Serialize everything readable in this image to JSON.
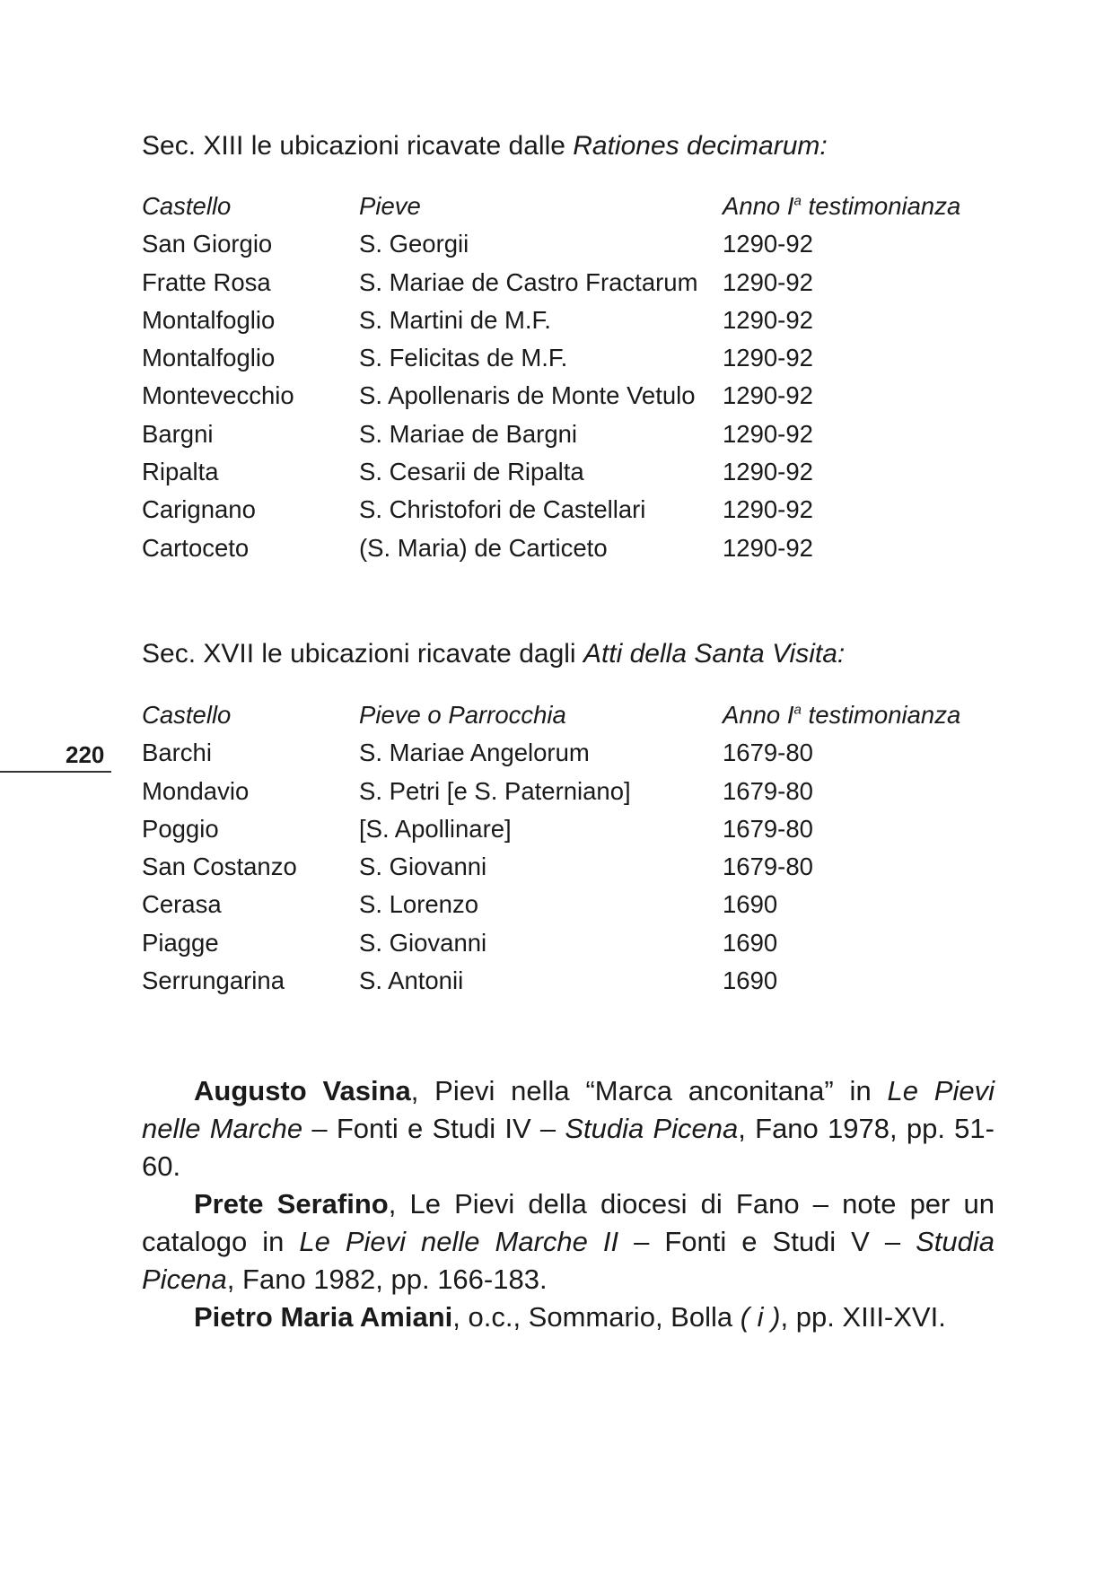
{
  "page_number": "220",
  "section1": {
    "title_plain": "Sec. XIII le ubicazioni ricavate dalle ",
    "title_italic": "Rationes decimarum:",
    "headers": {
      "castello": "Castello",
      "pieve": "Pieve",
      "anno": "Anno I",
      "anno_sup": "a",
      "anno_rest": " testimonianza"
    },
    "rows": [
      {
        "castello": "San Giorgio",
        "pieve": "S. Georgii",
        "anno": "1290-92"
      },
      {
        "castello": "Fratte Rosa",
        "pieve": "S. Mariae de Castro Fractarum",
        "anno": "1290-92"
      },
      {
        "castello": "Montalfoglio",
        "pieve": "S. Martini de M.F.",
        "anno": "1290-92"
      },
      {
        "castello": "Montalfoglio",
        "pieve": "S. Felicitas de M.F.",
        "anno": "1290-92"
      },
      {
        "castello": "Montevecchio",
        "pieve": "S. Apollenaris de Monte Vetulo",
        "anno": "1290-92"
      },
      {
        "castello": "Bargni",
        "pieve": "S. Mariae de Bargni",
        "anno": "1290-92"
      },
      {
        "castello": "Ripalta",
        "pieve": "S. Cesarii de Ripalta",
        "anno": "1290-92"
      },
      {
        "castello": "Carignano",
        "pieve": "S. Christofori de Castellari",
        "anno": "1290-92"
      },
      {
        "castello": "Cartoceto",
        "pieve": "(S. Maria) de Carticeto",
        "anno": "1290-92"
      }
    ]
  },
  "section2": {
    "title_plain": "Sec. XVII le ubicazioni ricavate dagli ",
    "title_italic": "Atti della Santa Visita:",
    "headers": {
      "castello": "Castello",
      "pieve": "Pieve o Parrocchia",
      "anno": "Anno I",
      "anno_sup": "a",
      "anno_rest": " testimonianza"
    },
    "rows": [
      {
        "castello": "Barchi",
        "pieve": "S. Mariae Angelorum",
        "anno": "1679-80"
      },
      {
        "castello": "Mondavio",
        "pieve": "S. Petri [e S. Paterniano]",
        "anno": "1679-80"
      },
      {
        "castello": "Poggio",
        "pieve": "[S. Apollinare]",
        "anno": "1679-80"
      },
      {
        "castello": "San Costanzo",
        "pieve": "S. Giovanni",
        "anno": "1679-80"
      },
      {
        "castello": "Cerasa",
        "pieve": "S. Lorenzo",
        "anno": "1690"
      },
      {
        "castello": "Piagge",
        "pieve": "S. Giovanni",
        "anno": "1690"
      },
      {
        "castello": "Serrungarina",
        "pieve": "S. Antonii",
        "anno": "1690"
      }
    ]
  },
  "references": [
    {
      "parts": [
        {
          "t": "Augusto Vasina",
          "s": "b"
        },
        {
          "t": ", Pievi nella “Marca anconitana” in ",
          "s": ""
        },
        {
          "t": "Le Pievi nelle Marche",
          "s": "i"
        },
        {
          "t": " – Fonti e Studi IV – ",
          "s": ""
        },
        {
          "t": "Studia Picena",
          "s": "i"
        },
        {
          "t": ", Fano 1978, pp. 51-60.",
          "s": ""
        }
      ]
    },
    {
      "parts": [
        {
          "t": "Prete Serafino",
          "s": "b"
        },
        {
          "t": ", Le Pievi della diocesi di Fano – note per un catalogo in ",
          "s": ""
        },
        {
          "t": "Le Pievi nelle Marche II",
          "s": "i"
        },
        {
          "t": " – Fonti e Studi V – ",
          "s": ""
        },
        {
          "t": "Studia Picena",
          "s": "i"
        },
        {
          "t": ", Fano 1982, pp. 166-183.",
          "s": ""
        }
      ]
    },
    {
      "parts": [
        {
          "t": "Pietro Maria Amiani",
          "s": "b"
        },
        {
          "t": ", o.c., Sommario, Bolla ",
          "s": ""
        },
        {
          "t": "( i )",
          "s": "i"
        },
        {
          "t": ", pp. XIII-XVI.",
          "s": ""
        }
      ]
    }
  ]
}
